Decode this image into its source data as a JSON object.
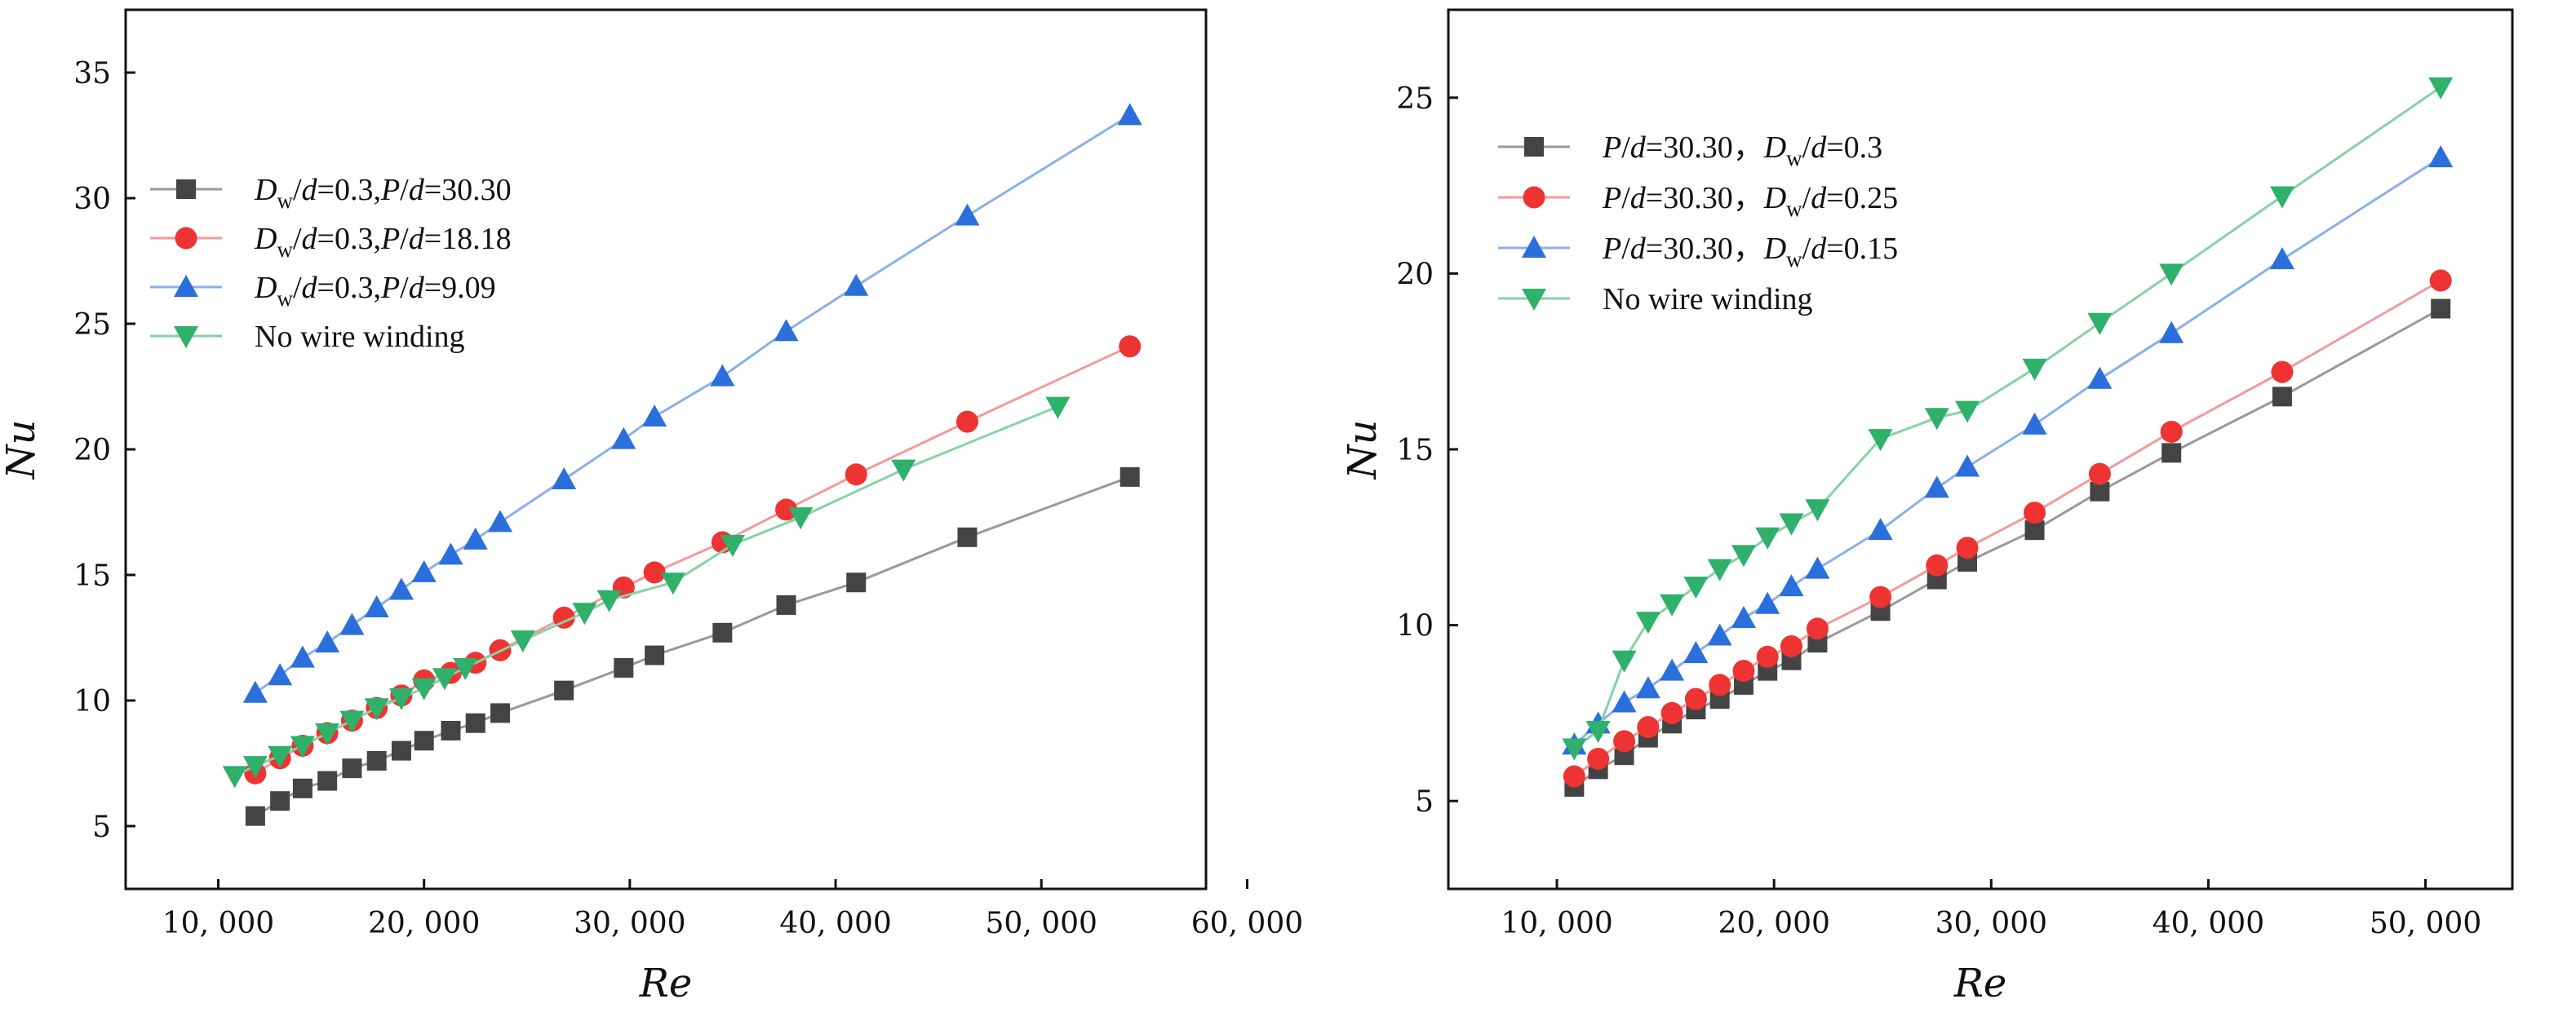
{
  "chart_data": [
    {
      "type": "line",
      "title": "",
      "xlabel": "Re",
      "ylabel": "Nu",
      "xlim": [
        5500,
        58000
      ],
      "ylim": [
        2.5,
        37.5
      ],
      "xticks": [
        10000,
        20000,
        30000,
        40000,
        50000,
        60000
      ],
      "xtick_labels": [
        "10, 000",
        "20, 000",
        "30, 000",
        "40, 000",
        "50, 000",
        "60, 000"
      ],
      "yticks": [
        5,
        10,
        15,
        20,
        25,
        30,
        35
      ],
      "ytick_labels": [
        "5",
        "10",
        "15",
        "20",
        "25",
        "30",
        "35"
      ],
      "legend_position": "upper-left",
      "series": [
        {
          "name": "Dw/d=0.3,P/d=30.30",
          "label_parts": [
            "D",
            "w",
            "/",
            "d",
            "=0.3,",
            "P",
            "/",
            "d",
            "=30.30"
          ],
          "marker": "square",
          "color": "#444444",
          "line_color": "#999999",
          "x": [
            11800,
            13000,
            14100,
            15300,
            16500,
            17700,
            18900,
            20000,
            21300,
            22500,
            23700,
            26800,
            29700,
            31200,
            34500,
            37600,
            41000,
            46400,
            54300
          ],
          "y": [
            5.4,
            6.0,
            6.5,
            6.8,
            7.3,
            7.6,
            8.0,
            8.4,
            8.8,
            9.1,
            9.5,
            10.4,
            11.3,
            11.8,
            12.7,
            13.8,
            14.7,
            16.5,
            18.9
          ]
        },
        {
          "name": "Dw/d=0.3,P/d=18.18",
          "label_parts": [
            "D",
            "w",
            "/",
            "d",
            "=0.3,",
            "P",
            "/",
            "d",
            "=18.18"
          ],
          "marker": "circle",
          "color": "#ee3333",
          "line_color": "#f39a9a",
          "x": [
            11800,
            13000,
            14100,
            15300,
            16500,
            17700,
            18900,
            20000,
            21300,
            22500,
            23700,
            26800,
            29700,
            31200,
            34500,
            37600,
            41000,
            46400,
            54300
          ],
          "y": [
            7.1,
            7.7,
            8.2,
            8.7,
            9.2,
            9.7,
            10.2,
            10.8,
            11.1,
            11.5,
            12.0,
            13.3,
            14.5,
            15.1,
            16.3,
            17.6,
            19.0,
            21.1,
            24.1
          ]
        },
        {
          "name": "Dw/d=0.3,P/d=9.09",
          "label_parts": [
            "D",
            "w",
            "/",
            "d",
            "=0.3,",
            "P",
            "/",
            "d",
            "=9.09"
          ],
          "marker": "triangle-up",
          "color": "#2a6fdb",
          "line_color": "#8ab0ea",
          "x": [
            11800,
            13000,
            14100,
            15300,
            16500,
            17700,
            18900,
            20000,
            21300,
            22500,
            23700,
            26800,
            29700,
            31200,
            34500,
            37600,
            41000,
            46400,
            54300
          ],
          "y": [
            10.3,
            11.0,
            11.7,
            12.3,
            13.0,
            13.7,
            14.4,
            15.1,
            15.8,
            16.4,
            17.1,
            18.8,
            20.4,
            21.3,
            22.9,
            24.7,
            26.5,
            29.3,
            33.3
          ]
        },
        {
          "name": "No wire winding",
          "label_parts": [
            "No wire winding"
          ],
          "marker": "triangle-down",
          "color": "#2fb06b",
          "line_color": "#86d2a5",
          "x": [
            10800,
            11800,
            13000,
            14100,
            15300,
            16500,
            17700,
            18900,
            20000,
            21000,
            22000,
            24800,
            27800,
            29000,
            32100,
            35000,
            38300,
            43300,
            50800
          ],
          "y": [
            7.0,
            7.4,
            7.8,
            8.2,
            8.7,
            9.2,
            9.7,
            10.1,
            10.5,
            10.9,
            11.3,
            12.4,
            13.5,
            14.0,
            14.7,
            16.2,
            17.3,
            19.2,
            21.7
          ]
        }
      ]
    },
    {
      "type": "line",
      "title": "",
      "xlabel": "Re",
      "ylabel": "Nu",
      "xlim": [
        5000,
        54000
      ],
      "ylim": [
        2.5,
        27.5
      ],
      "xticks": [
        10000,
        20000,
        30000,
        40000,
        50000
      ],
      "xtick_labels": [
        "10, 000",
        "20, 000",
        "30, 000",
        "40, 000",
        "50, 000"
      ],
      "yticks": [
        5,
        10,
        15,
        20,
        25
      ],
      "ytick_labels": [
        "5",
        "10",
        "15",
        "20",
        "25"
      ],
      "legend_position": "upper-left",
      "series": [
        {
          "name": "P/d=30.30，Dw/d=0.3",
          "label_parts": [
            "P",
            "/",
            "d",
            "=30.30，",
            "D",
            "w",
            "/",
            "d",
            "=0.3"
          ],
          "marker": "square",
          "color": "#444444",
          "line_color": "#999999",
          "x": [
            10800,
            11900,
            13100,
            14200,
            15300,
            16400,
            17500,
            18600,
            19700,
            20800,
            22000,
            24900,
            27500,
            28900,
            32000,
            35000,
            38300,
            43400,
            50700
          ],
          "y": [
            5.4,
            5.9,
            6.3,
            6.8,
            7.2,
            7.6,
            7.9,
            8.3,
            8.7,
            9.0,
            9.5,
            10.4,
            11.3,
            11.8,
            12.7,
            13.8,
            14.9,
            16.5,
            19.0
          ]
        },
        {
          "name": "P/d=30.30，Dw/d=0.25",
          "label_parts": [
            "P",
            "/",
            "d",
            "=30.30，",
            "D",
            "w",
            "/",
            "d",
            "=0.25"
          ],
          "marker": "circle",
          "color": "#ee3333",
          "line_color": "#f39a9a",
          "x": [
            10800,
            11900,
            13100,
            14200,
            15300,
            16400,
            17500,
            18600,
            19700,
            20800,
            22000,
            24900,
            27500,
            28900,
            32000,
            35000,
            38300,
            43400,
            50700
          ],
          "y": [
            5.7,
            6.2,
            6.7,
            7.1,
            7.5,
            7.9,
            8.3,
            8.7,
            9.1,
            9.4,
            9.9,
            10.8,
            11.7,
            12.2,
            13.2,
            14.3,
            15.5,
            17.2,
            19.8
          ]
        },
        {
          "name": "P/d=30.30，Dw/d=0.15",
          "label_parts": [
            "P",
            "/",
            "d",
            "=30.30，",
            "D",
            "w",
            "/",
            "d",
            "=0.15"
          ],
          "marker": "triangle-up",
          "color": "#2a6fdb",
          "line_color": "#8ab0ea",
          "x": [
            10800,
            11900,
            13100,
            14200,
            15300,
            16400,
            17500,
            18600,
            19700,
            20800,
            22000,
            24900,
            27500,
            28900,
            32000,
            35000,
            38300,
            43400,
            50700
          ],
          "y": [
            6.6,
            7.2,
            7.8,
            8.2,
            8.7,
            9.2,
            9.7,
            10.2,
            10.6,
            11.1,
            11.6,
            12.7,
            13.9,
            14.5,
            15.7,
            17.0,
            18.3,
            20.4,
            23.3
          ]
        },
        {
          "name": "No wire winding",
          "label_parts": [
            "No wire winding"
          ],
          "marker": "triangle-down",
          "color": "#2fb06b",
          "line_color": "#86d2a5",
          "x": [
            10800,
            11900,
            13100,
            14200,
            15300,
            16400,
            17500,
            18600,
            19700,
            20800,
            22000,
            24900,
            27500,
            28900,
            32000,
            35000,
            38300,
            43400,
            50700
          ],
          "y": [
            6.5,
            7.0,
            9.0,
            10.1,
            10.6,
            11.1,
            11.6,
            12.0,
            12.5,
            12.9,
            13.3,
            15.3,
            15.9,
            16.1,
            17.3,
            18.6,
            20.0,
            22.2,
            25.3
          ]
        }
      ]
    }
  ]
}
